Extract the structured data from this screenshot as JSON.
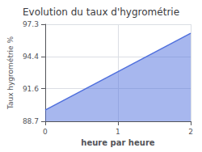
{
  "chart_data": {
    "type": "area",
    "title": "Evolution du taux d'hygrométrie",
    "xlabel": "heure par heure",
    "ylabel": "Taux hygrométrie %",
    "x": [
      0,
      2
    ],
    "values": [
      89.7,
      96.5
    ],
    "xlim": [
      0,
      2
    ],
    "ylim": [
      88.7,
      97.3
    ],
    "xticks": [
      0,
      1,
      2
    ],
    "yticks": [
      88.7,
      91.6,
      94.4,
      97.3
    ],
    "grid": true
  }
}
